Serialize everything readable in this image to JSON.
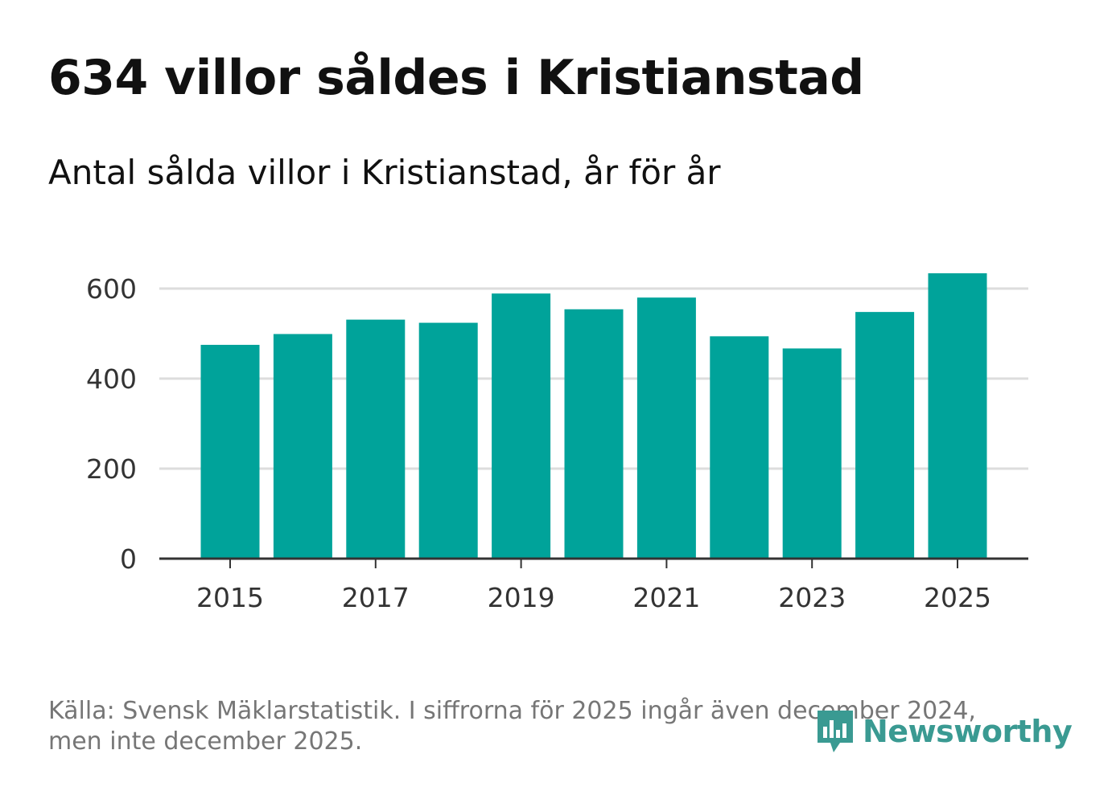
{
  "header": {
    "title": "634 villor såldes i Kristianstad",
    "subtitle": "Antal sålda villor i Kristianstad, år för år"
  },
  "footer": {
    "source_line1": "Källa: Svensk Mäklarstatistik. I siffrorna för 2025 ingår även december 2024,",
    "source_line2": "men inte december 2025."
  },
  "logo": {
    "text": "Newsworthy",
    "icon": "newsworthy-bar-chart-icon",
    "color": "#3a9a92"
  },
  "colors": {
    "bar": "#00a39a",
    "grid": "#dddddd",
    "axis": "#333333"
  },
  "chart_data": {
    "type": "bar",
    "title": "634 villor såldes i Kristianstad",
    "subtitle": "Antal sålda villor i Kristianstad, år för år",
    "categories": [
      "2015",
      "2016",
      "2017",
      "2018",
      "2019",
      "2020",
      "2021",
      "2022",
      "2023",
      "2024",
      "2025"
    ],
    "values": [
      475,
      499,
      531,
      524,
      589,
      554,
      580,
      494,
      467,
      548,
      634
    ],
    "x_tick_labels": [
      "2015",
      "2017",
      "2019",
      "2021",
      "2023",
      "2025"
    ],
    "y_ticks": [
      0,
      200,
      400,
      600
    ],
    "ylim": [
      0,
      600
    ],
    "xlabel": "",
    "ylabel": "",
    "grid": true
  }
}
